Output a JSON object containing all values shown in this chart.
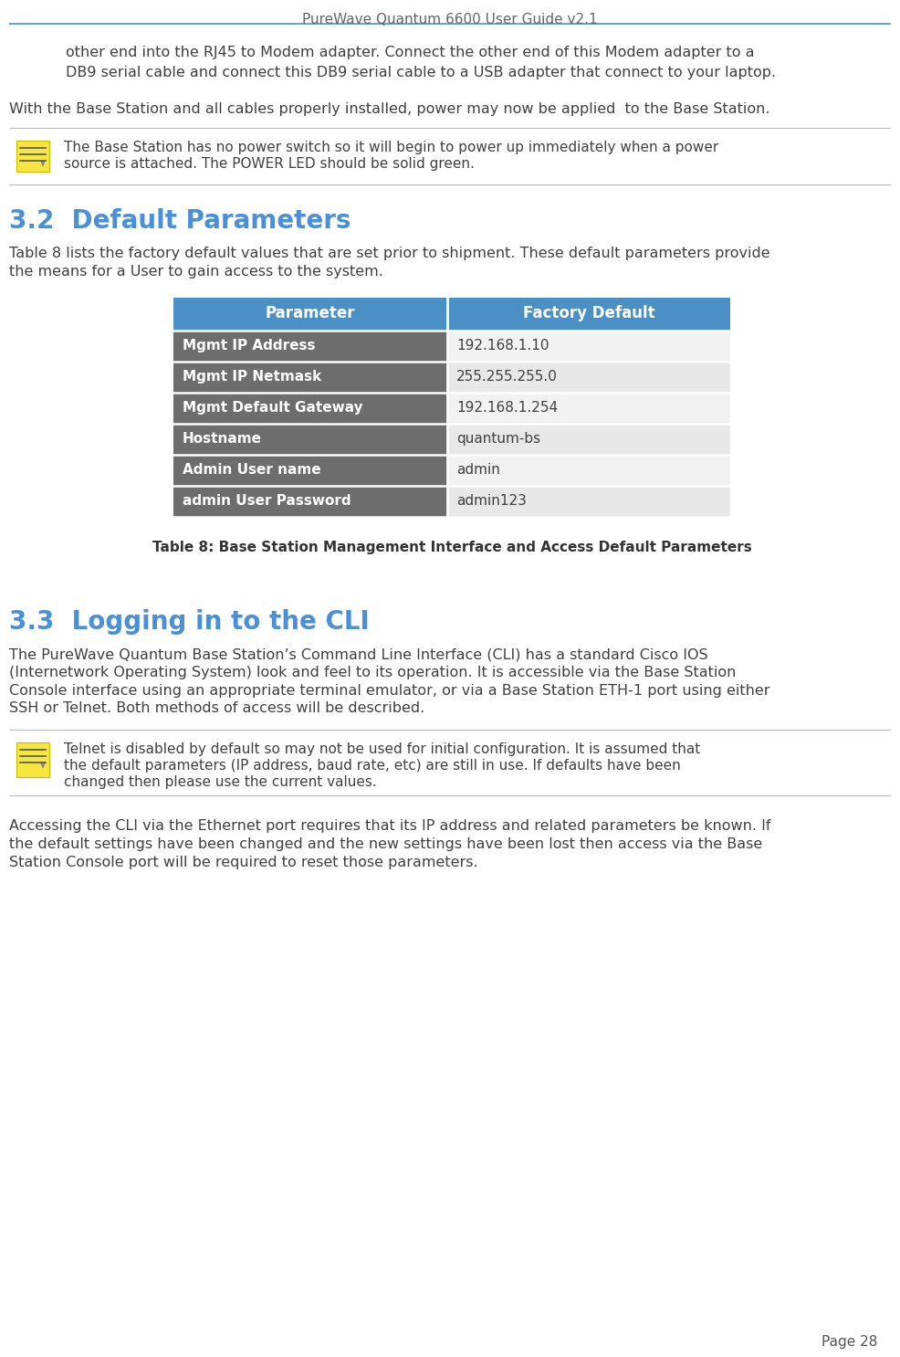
{
  "page_title": "PureWave Quantum 6600 User Guide v2.1",
  "page_number": "Page 28",
  "background_color": "#ffffff",
  "title_color": "#4a90d9",
  "header_line_color": "#4a90d9",
  "body_text_color": "#404040",
  "indent_text_line1": "other end into the RJ45 to Modem adapter. Connect the other end of this Modem adapter to a",
  "indent_text_line2": "DB9 serial cable and connect this DB9 serial cable to a USB adapter that connect to your laptop.",
  "full_width_text1": "With the Base Station and all cables properly installed, power may now be applied  to the Base Station.",
  "note_text1_line1": "The Base Station has no power switch so it will begin to power up immediately when a power",
  "note_text1_line2": "source is attached. The POWER LED should be solid green.",
  "section_32_title": "3.2  Default Parameters",
  "section_32_body_line1": "Table 8 lists the factory default values that are set prior to shipment. These default parameters provide",
  "section_32_body_line2": "the means for a User to gain access to the system.",
  "table_header_bg": "#4a90c4",
  "table_header_text": "#ffffff",
  "table_row_bg_dark": "#6d6d6d",
  "table_row_bg_light1": "#f2f2f2",
  "table_row_bg_light2": "#e8e8e8",
  "table_row_text_dark": "#ffffff",
  "table_row_text_light": "#404040",
  "table_headers": [
    "Parameter",
    "Factory Default"
  ],
  "table_rows": [
    [
      "Mgmt IP Address",
      "192.168.1.10"
    ],
    [
      "Mgmt IP Netmask",
      "255.255.255.0"
    ],
    [
      "Mgmt Default Gateway",
      "192.168.1.254"
    ],
    [
      "Hostname",
      "quantum-bs"
    ],
    [
      "Admin User name",
      "admin"
    ],
    [
      "admin User Password",
      "admin123"
    ]
  ],
  "table_caption": "Table 8: Base Station Management Interface and Access Default Parameters",
  "section_33_title": "3.3  Logging in to the CLI",
  "section_33_body": "The PureWave Quantum Base Station’s Command Line Interface (CLI) has a standard Cisco IOS\n(Internetwork Operating System) look and feel to its operation. It is accessible via the Base Station\nConsole interface using an appropriate terminal emulator, or via a Base Station ETH-1 port using either\nSSH or Telnet. Both methods of access will be described.",
  "note_text2_line1": "Telnet is disabled by default so may not be used for initial configuration. It is assumed that",
  "note_text2_line2": "the default parameters (IP address, baud rate, etc) are still in use. If defaults have been",
  "note_text2_line3": "changed then please use the current values.",
  "footer_text": "Accessing the CLI via the Ethernet port requires that its IP address and related parameters be known. If\nthe default settings have been changed and the new settings have been lost then access via the Base\nStation Console port will be required to reset those parameters."
}
